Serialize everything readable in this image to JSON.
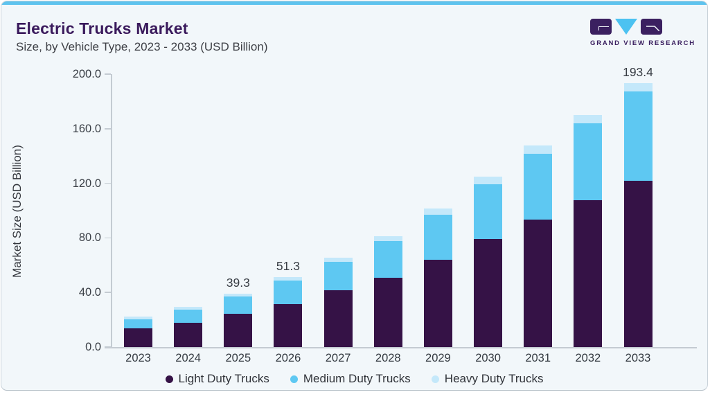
{
  "header": {
    "title": "Electric Trucks Market",
    "subtitle": "Size, by Vehicle Type, 2023 - 2033 (USD Billion)",
    "logo_text": "GRAND VIEW RESEARCH"
  },
  "colors": {
    "accent_strip": "#5ec3ee",
    "card_background": "#f2f7fa",
    "title_text": "#3a1a5c",
    "light_duty": "#351246",
    "medium_duty": "#5ec8f2",
    "heavy_duty": "#c4e8fa",
    "axis_line": "#c4cbd2",
    "logo_purple": "#3b2060",
    "logo_cyan": "#4cc2f1"
  },
  "chart_data": {
    "type": "bar",
    "stacked": true,
    "title": "Electric Trucks Market Size, by Vehicle Type, 2023 - 2033 (USD Billion)",
    "xlabel": "",
    "ylabel": "Market Size (USD Billion)",
    "ylim": [
      0,
      200
    ],
    "yticks": [
      0,
      40,
      80,
      120,
      160,
      200
    ],
    "grid": false,
    "legend_position": "bottom",
    "categories": [
      "2023",
      "2024",
      "2025",
      "2026",
      "2027",
      "2028",
      "2029",
      "2030",
      "2031",
      "2032",
      "2033"
    ],
    "series": [
      {
        "name": "Light Duty Trucks",
        "color": "#351246",
        "values": [
          13.7,
          17.9,
          24.5,
          31.6,
          41.4,
          51.0,
          64.0,
          79.0,
          93.5,
          107.5,
          121.9
        ]
      },
      {
        "name": "Medium Duty Trucks",
        "color": "#5ec8f2",
        "values": [
          6.8,
          9.4,
          12.6,
          17.1,
          21.0,
          26.6,
          32.9,
          40.5,
          48.3,
          56.6,
          65.6
        ]
      },
      {
        "name": "Heavy Duty Trucks",
        "color": "#c4e8fa",
        "values": [
          1.9,
          2.1,
          2.2,
          2.6,
          3.2,
          3.8,
          4.4,
          5.3,
          5.7,
          6.0,
          5.9
        ]
      }
    ],
    "totals": [
      22.4,
      29.4,
      39.3,
      51.3,
      65.6,
      81.4,
      101.3,
      124.8,
      147.5,
      170.1,
      193.4
    ],
    "annotations": [
      {
        "category": "2025",
        "label": "39.3"
      },
      {
        "category": "2026",
        "label": "51.3"
      },
      {
        "category": "2033",
        "label": "193.4"
      }
    ]
  }
}
